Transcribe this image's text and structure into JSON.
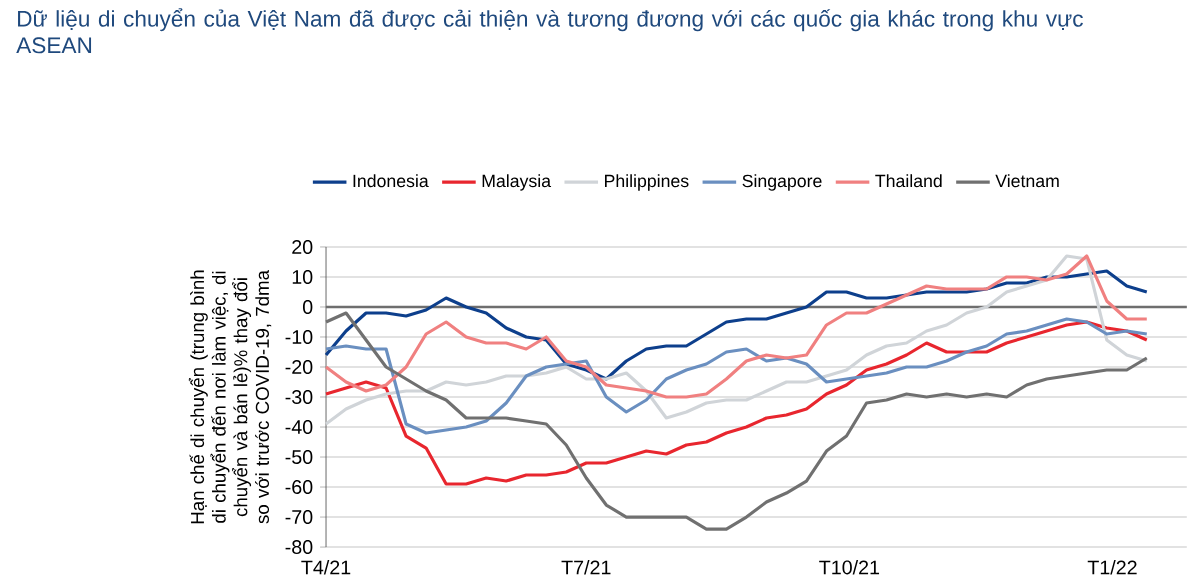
{
  "chart_data": {
    "type": "line",
    "title": "Dữ liệu di chuyển của Việt Nam đã được cải thiện và tương đương với các quốc gia khác trong khu vực ASEAN",
    "ylabel": "Hạn chế di chuyển (trung bình di chuyển đến nơi làm việc, di chuyển và bán lẻ)% thay đổi so với trước COVID-19, 7dma",
    "x": [
      "2021-04-01",
      "2021-04-08",
      "2021-04-15",
      "2021-04-22",
      "2021-04-29",
      "2021-05-06",
      "2021-05-13",
      "2021-05-20",
      "2021-05-27",
      "2021-06-03",
      "2021-06-10",
      "2021-06-17",
      "2021-06-24",
      "2021-07-01",
      "2021-07-08",
      "2021-07-15",
      "2021-07-22",
      "2021-07-29",
      "2021-08-05",
      "2021-08-12",
      "2021-08-19",
      "2021-08-26",
      "2021-09-02",
      "2021-09-09",
      "2021-09-16",
      "2021-09-23",
      "2021-09-30",
      "2021-10-07",
      "2021-10-14",
      "2021-10-21",
      "2021-10-28",
      "2021-11-04",
      "2021-11-11",
      "2021-11-18",
      "2021-11-25",
      "2021-12-02",
      "2021-12-09",
      "2021-12-16",
      "2021-12-23",
      "2021-12-30",
      "2022-01-06",
      "2022-01-13"
    ],
    "series": [
      {
        "name": "Indonesia",
        "color": "#0d3f8c",
        "values": [
          -16,
          -8,
          -2,
          -2,
          -3,
          -1,
          3,
          0,
          -2,
          -7,
          -10,
          -11,
          -19,
          -21,
          -24,
          -18,
          -14,
          -13,
          -13,
          -9,
          -5,
          -4,
          -4,
          -2,
          0,
          5,
          5,
          3,
          3,
          4,
          5,
          5,
          5,
          6,
          8,
          8,
          10,
          10,
          11,
          12,
          7,
          5
        ]
      },
      {
        "name": "Malaysia",
        "color": "#e8262e",
        "values": [
          -29,
          -27,
          -25,
          -27,
          -43,
          -47,
          -59,
          -59,
          -57,
          -58,
          -56,
          -56,
          -55,
          -52,
          -52,
          -50,
          -48,
          -49,
          -46,
          -45,
          -42,
          -40,
          -37,
          -36,
          -34,
          -29,
          -26,
          -21,
          -19,
          -16,
          -12,
          -15,
          -15,
          -15,
          -12,
          -10,
          -8,
          -6,
          -5,
          -7,
          -8,
          -11
        ]
      },
      {
        "name": "Philippines",
        "color": "#d0d4d8",
        "values": [
          -39,
          -34,
          -31,
          -29,
          -28,
          -28,
          -25,
          -26,
          -25,
          -23,
          -23,
          -22,
          -20,
          -24,
          -24,
          -22,
          -28,
          -37,
          -35,
          -32,
          -31,
          -31,
          -28,
          -25,
          -25,
          -23,
          -21,
          -16,
          -13,
          -12,
          -8,
          -6,
          -2,
          0,
          5,
          7,
          9,
          17,
          16,
          -11,
          -16,
          -18
        ]
      },
      {
        "name": "Singapore",
        "color": "#6a8fc0",
        "values": [
          -14,
          -13,
          -14,
          -14,
          -39,
          -42,
          -41,
          -40,
          -38,
          -32,
          -23,
          -20,
          -19,
          -18,
          -30,
          -35,
          -31,
          -24,
          -21,
          -19,
          -15,
          -14,
          -18,
          -17,
          -19,
          -25,
          -24,
          -23,
          -22,
          -20,
          -20,
          -18,
          -15,
          -13,
          -9,
          -8,
          -6,
          -4,
          -5,
          -9,
          -8,
          -9
        ]
      },
      {
        "name": "Thailand",
        "color": "#f08080",
        "values": [
          -20,
          -25,
          -28,
          -26,
          -20,
          -9,
          -5,
          -10,
          -12,
          -12,
          -14,
          -10,
          -18,
          -20,
          -26,
          -27,
          -28,
          -30,
          -30,
          -29,
          -24,
          -18,
          -16,
          -17,
          -16,
          -6,
          -2,
          -2,
          1,
          4,
          7,
          6,
          6,
          6,
          10,
          10,
          9,
          11,
          17,
          2,
          -4,
          -4
        ]
      },
      {
        "name": "Vietnam",
        "color": "#707070",
        "values": [
          -5,
          -2,
          -11,
          -20,
          -24,
          -28,
          -31,
          -37,
          -37,
          -37,
          -38,
          -39,
          -46,
          -57,
          -66,
          -70,
          -70,
          -70,
          -70,
          -74,
          -74,
          -70,
          -65,
          -62,
          -58,
          -48,
          -43,
          -32,
          -31,
          -29,
          -30,
          -29,
          -30,
          -29,
          -30,
          -26,
          -24,
          -23,
          -22,
          -21,
          -21,
          -17
        ]
      }
    ],
    "xlim": [
      "2021-04-01",
      "2022-01-27"
    ],
    "xticks": [
      {
        "value": "2021-04-01",
        "label": "T4/21"
      },
      {
        "value": "2021-07-01",
        "label": "T7/21"
      },
      {
        "value": "2021-10-01",
        "label": "T10/21"
      },
      {
        "value": "2022-01-01",
        "label": "T1/22"
      }
    ],
    "ylim": [
      -80,
      20
    ],
    "yticks": [
      -80,
      -70,
      -60,
      -50,
      -40,
      -30,
      -20,
      -10,
      0,
      10,
      20
    ],
    "ref_lines": [
      {
        "axis": "y",
        "value": 0,
        "color": "#6e6e6e"
      }
    ],
    "grid": "y",
    "legend": "top",
    "marker": "none",
    "line_style": "solid"
  }
}
